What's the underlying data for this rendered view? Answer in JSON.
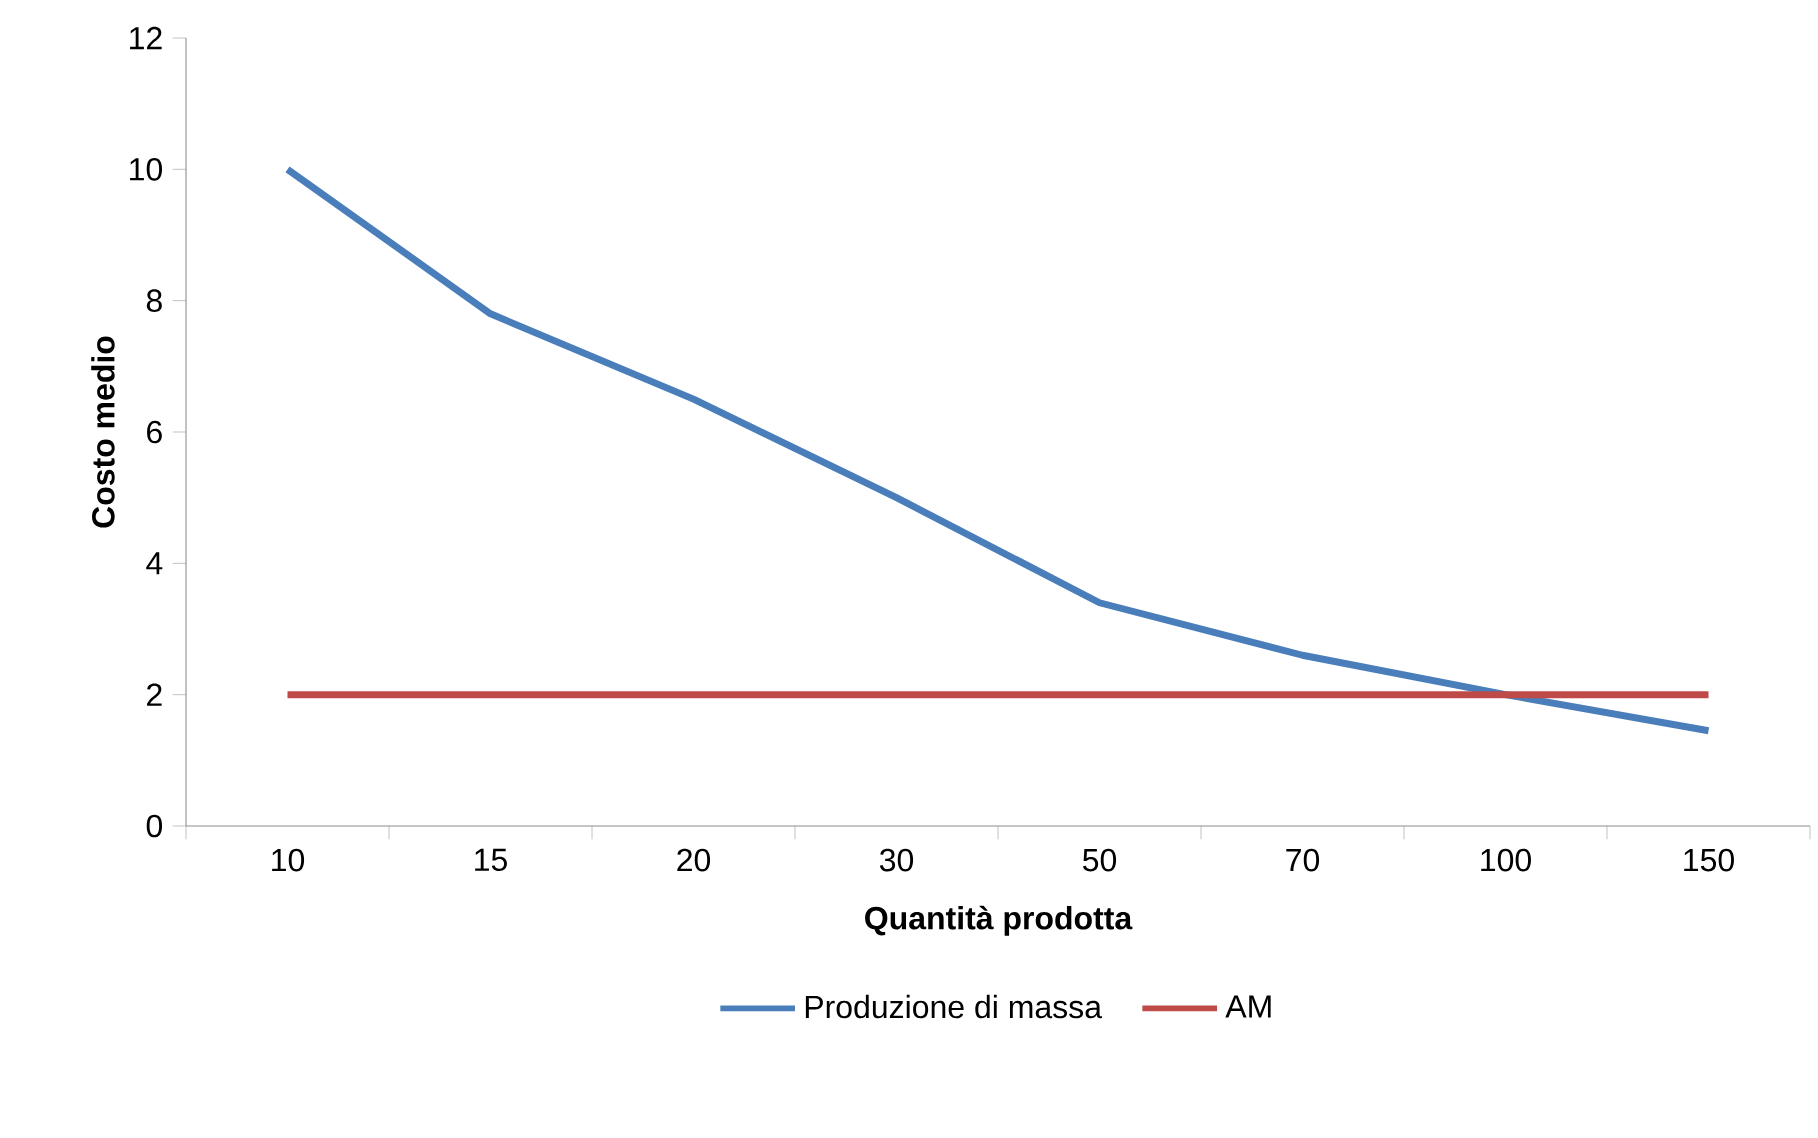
{
  "chart_data": {
    "type": "line",
    "xlabel": "Quantità prodotta",
    "ylabel": "Costo medio",
    "categories": [
      "10",
      "15",
      "20",
      "30",
      "50",
      "70",
      "100",
      "150"
    ],
    "ylim": [
      0,
      12
    ],
    "yticks": [
      0,
      2,
      4,
      6,
      8,
      10,
      12
    ],
    "grid": false,
    "legend": "bottom",
    "marker": "none",
    "line_style": "solid",
    "series": [
      {
        "name": "Produzione di massa",
        "color": "#4a7ebb",
        "values": [
          10,
          7.8,
          6.5,
          5.0,
          3.4,
          2.6,
          2.0,
          1.45
        ]
      },
      {
        "name": "AM",
        "color": "#be4b48",
        "values": [
          2,
          2,
          2,
          2,
          2,
          2,
          2,
          2
        ]
      }
    ]
  }
}
